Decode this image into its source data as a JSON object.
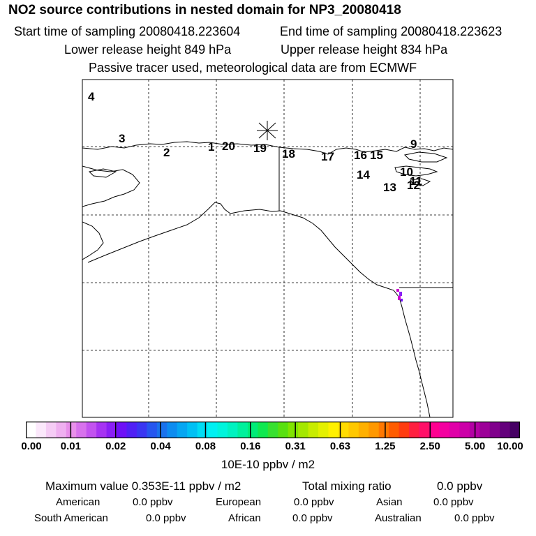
{
  "header": {
    "title": "NO2 source contributions in nested domain for NP3_20080418",
    "start_time": "Start time of sampling 20080418.223604",
    "end_time": "End time of sampling 20080418.223623",
    "lower_release": "Lower release height  849 hPa",
    "upper_release": "Upper release height  834 hPa",
    "tracer_note": "Passive tracer used, meteorological data are from ECMWF"
  },
  "map": {
    "source_markers": [
      "4",
      "3",
      "2",
      "1",
      "20",
      "19",
      "18",
      "17",
      "16",
      "15",
      "9",
      "14",
      "10",
      "13",
      "12",
      "11"
    ],
    "release_marker": "star-marker",
    "colors": {
      "land_outline": "#000000",
      "grid": "#000000",
      "hotspot": "#cc00cc"
    }
  },
  "legend": {
    "colors": [
      "#ffffff",
      "#fbe8fb",
      "#f5ccf5",
      "#efb0f0",
      "#e890ea",
      "#d772ec",
      "#c253ef",
      "#a633f2",
      "#8a1ff5",
      "#6e10f7",
      "#5020f5",
      "#3a36f2",
      "#2656ef",
      "#1a72ed",
      "#0d8cf0",
      "#06a6f2",
      "#00c0f4",
      "#00dcf4",
      "#00f0f2",
      "#00f4dc",
      "#00f2c0",
      "#00f09c",
      "#00ec78",
      "#10e850",
      "#38e030",
      "#58e010",
      "#80e400",
      "#a4e800",
      "#c8ec00",
      "#e4f000",
      "#fff000",
      "#ffdc00",
      "#ffc800",
      "#ffb000",
      "#ff9800",
      "#ff7800",
      "#ff5c00",
      "#ff3c10",
      "#ff2040",
      "#ff1068",
      "#ff0090",
      "#f400a0",
      "#e000a8",
      "#cc00a8",
      "#b400a4",
      "#9c0098",
      "#80008c",
      "#64007c",
      "#460064"
    ],
    "labels": [
      "0.00",
      "0.01",
      "0.02",
      "0.04",
      "0.08",
      "0.16",
      "0.31",
      "0.63",
      "1.25",
      "2.50",
      "5.00",
      "10.00"
    ],
    "unit": "10E-10 ppbv / m2"
  },
  "stats": {
    "max_label": "Maximum value  0.353E-11 ppbv / m2",
    "total_label": "Total mixing ratio",
    "total_value": "0.0 ppbv",
    "regions": [
      {
        "name": "American",
        "value": "0.0 ppbv"
      },
      {
        "name": "European",
        "value": "0.0 ppbv"
      },
      {
        "name": "Asian",
        "value": "0.0 ppbv"
      },
      {
        "name": "South American",
        "value": "0.0 ppbv"
      },
      {
        "name": "African",
        "value": "0.0 ppbv"
      },
      {
        "name": "Australian",
        "value": "0.0 ppbv"
      }
    ]
  }
}
